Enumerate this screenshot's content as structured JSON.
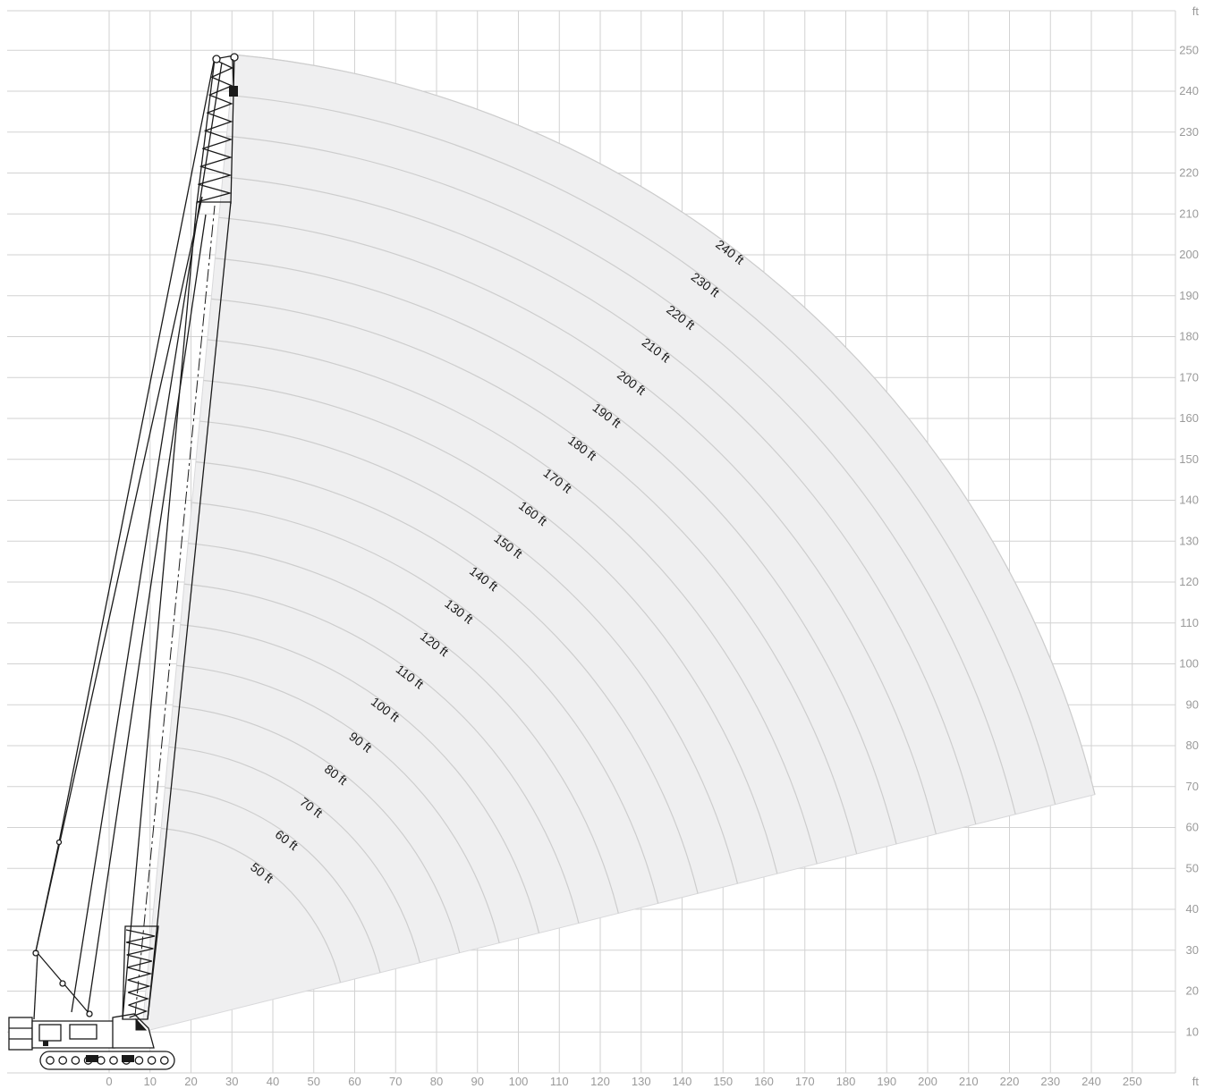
{
  "chart_data": {
    "type": "diagram",
    "units": {
      "x": "ft",
      "y": "ft"
    },
    "x_ticks": [
      0,
      10,
      20,
      30,
      40,
      50,
      60,
      70,
      80,
      90,
      100,
      110,
      120,
      130,
      140,
      150,
      160,
      170,
      180,
      190,
      200,
      210,
      220,
      230,
      240,
      250
    ],
    "y_ticks": [
      10,
      20,
      30,
      40,
      50,
      60,
      70,
      80,
      90,
      100,
      110,
      120,
      130,
      140,
      150,
      160,
      170,
      180,
      190,
      200,
      210,
      220,
      230,
      240,
      250
    ],
    "xlim": [
      -26,
      260
    ],
    "ylim": [
      0,
      260
    ],
    "boom_pivot": {
      "x": 8,
      "y": 10
    },
    "boom_lengths": [
      50,
      60,
      70,
      80,
      90,
      100,
      110,
      120,
      130,
      140,
      150,
      160,
      170,
      180,
      190,
      200,
      210,
      220,
      230,
      240
    ],
    "boom_labels": [
      "50 ft",
      "60 ft",
      "70 ft",
      "80 ft",
      "90 ft",
      "100 ft",
      "110 ft",
      "120 ft",
      "130 ft",
      "140 ft",
      "150 ft",
      "160 ft",
      "170 ft",
      "180 ft",
      "190 ft",
      "200 ft",
      "210 ft",
      "220 ft",
      "230 ft",
      "240 ft"
    ],
    "working_range": {
      "min_angle_deg": 14,
      "max_angle_deg": 84.6
    },
    "colors": {
      "grid": "#d2d2d2",
      "range_fill": "#efeff0",
      "arc": "#cdcdcd",
      "crane": "#1a1a1a",
      "tick": "#9a9a9a"
    },
    "grid": true
  }
}
